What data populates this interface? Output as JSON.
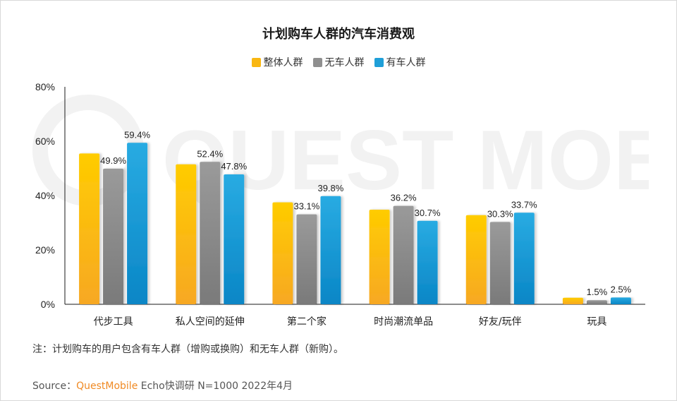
{
  "title": "计划购车人群的汽车消费观",
  "note": "注：计划购车的用户包含有车人群（增购或换购）和无车人群（新购）。",
  "source": {
    "prefix": "Source：",
    "brand": "QuestMobile",
    "suffix": " Echo快调研 N=1000 2022年4月"
  },
  "watermark_text": "QUEST MOBILE",
  "colors": {
    "overall": "#f9b712",
    "no_car": "#8f8f8f",
    "has_car": "#1f9fd8"
  },
  "chart_data": {
    "type": "bar",
    "categories": [
      "代步工具",
      "私人空间的延伸",
      "第二个家",
      "时尚潮流单品",
      "好友/玩伴",
      "玩具"
    ],
    "series": [
      {
        "name": "整体人群",
        "values": [
          55.5,
          51.5,
          37.5,
          34.8,
          32.8,
          2.4
        ],
        "labeled": [
          false,
          false,
          false,
          false,
          false,
          false
        ]
      },
      {
        "name": "无车人群",
        "values": [
          49.9,
          52.4,
          33.1,
          36.2,
          30.3,
          1.5
        ],
        "labeled": [
          true,
          true,
          true,
          true,
          true,
          true
        ]
      },
      {
        "name": "有车人群",
        "values": [
          59.4,
          47.8,
          39.8,
          30.7,
          33.7,
          2.5
        ],
        "labeled": [
          true,
          true,
          true,
          true,
          true,
          true
        ]
      }
    ],
    "yticks": [
      "0%",
      "20%",
      "40%",
      "60%",
      "80%"
    ],
    "ylim": [
      0,
      80
    ],
    "xlabel": "",
    "ylabel": "",
    "legend_position": "top-center",
    "grid": false
  }
}
